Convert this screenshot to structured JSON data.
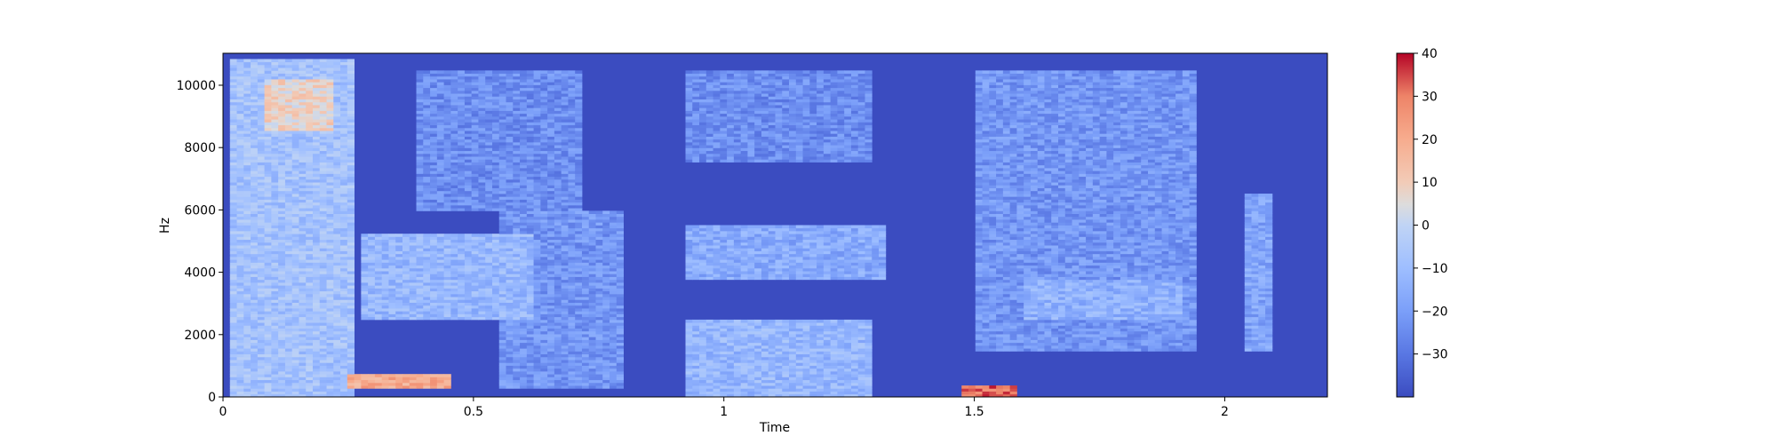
{
  "chart_data": {
    "type": "heatmap",
    "title": "",
    "xlabel": "Time",
    "ylabel": "Hz",
    "xlim": [
      0,
      2.205
    ],
    "ylim": [
      0,
      11025
    ],
    "xticks": [
      {
        "value": 0,
        "label": "0"
      },
      {
        "value": 0.5,
        "label": "0.5"
      },
      {
        "value": 1,
        "label": "1"
      },
      {
        "value": 1.5,
        "label": "1.5"
      },
      {
        "value": 2,
        "label": "2"
      }
    ],
    "yticks": [
      {
        "value": 0,
        "label": "0"
      },
      {
        "value": 2000,
        "label": "2000"
      },
      {
        "value": 4000,
        "label": "4000"
      },
      {
        "value": 6000,
        "label": "6000"
      },
      {
        "value": 8000,
        "label": "8000"
      },
      {
        "value": 10000,
        "label": "10000"
      }
    ],
    "colorbar": {
      "colormap": "coolwarm",
      "range": [
        -40,
        40
      ],
      "ticks": [
        {
          "value": 40,
          "label": "40"
        },
        {
          "value": 30,
          "label": "30"
        },
        {
          "value": 20,
          "label": "20"
        },
        {
          "value": 10,
          "label": "10"
        },
        {
          "value": 0,
          "label": "0"
        },
        {
          "value": -10,
          "label": "−10"
        },
        {
          "value": -20,
          "label": "−20"
        },
        {
          "value": -30,
          "label": "−30"
        }
      ]
    },
    "background_level_db": -40,
    "energy_regions": [
      {
        "t": [
          0.02,
          0.26
        ],
        "f": [
          0,
          10800
        ],
        "level_db": -8
      },
      {
        "t": [
          0.08,
          0.22
        ],
        "f": [
          8500,
          10200
        ],
        "level_db": 8
      },
      {
        "t": [
          0.28,
          0.62
        ],
        "f": [
          2500,
          5200
        ],
        "level_db": -12
      },
      {
        "t": [
          0.25,
          0.45
        ],
        "f": [
          300,
          700
        ],
        "level_db": 20
      },
      {
        "t": [
          0.38,
          0.72
        ],
        "f": [
          6000,
          10500
        ],
        "level_db": -24
      },
      {
        "t": [
          0.55,
          0.8
        ],
        "f": [
          300,
          6000
        ],
        "level_db": -22
      },
      {
        "t": [
          0.93,
          1.32
        ],
        "f": [
          3800,
          5500
        ],
        "level_db": -16
      },
      {
        "t": [
          0.93,
          1.3
        ],
        "f": [
          0,
          2500
        ],
        "level_db": -12
      },
      {
        "t": [
          0.93,
          1.3
        ],
        "f": [
          7500,
          10500
        ],
        "level_db": -24
      },
      {
        "t": [
          1.47,
          1.58
        ],
        "f": [
          0,
          400
        ],
        "level_db": 32
      },
      {
        "t": [
          1.5,
          1.95
        ],
        "f": [
          1500,
          10500
        ],
        "level_db": -22
      },
      {
        "t": [
          1.6,
          1.92
        ],
        "f": [
          2500,
          3800
        ],
        "level_db": -14
      },
      {
        "t": [
          2.04,
          2.09
        ],
        "f": [
          1500,
          6500
        ],
        "level_db": -18
      }
    ]
  }
}
